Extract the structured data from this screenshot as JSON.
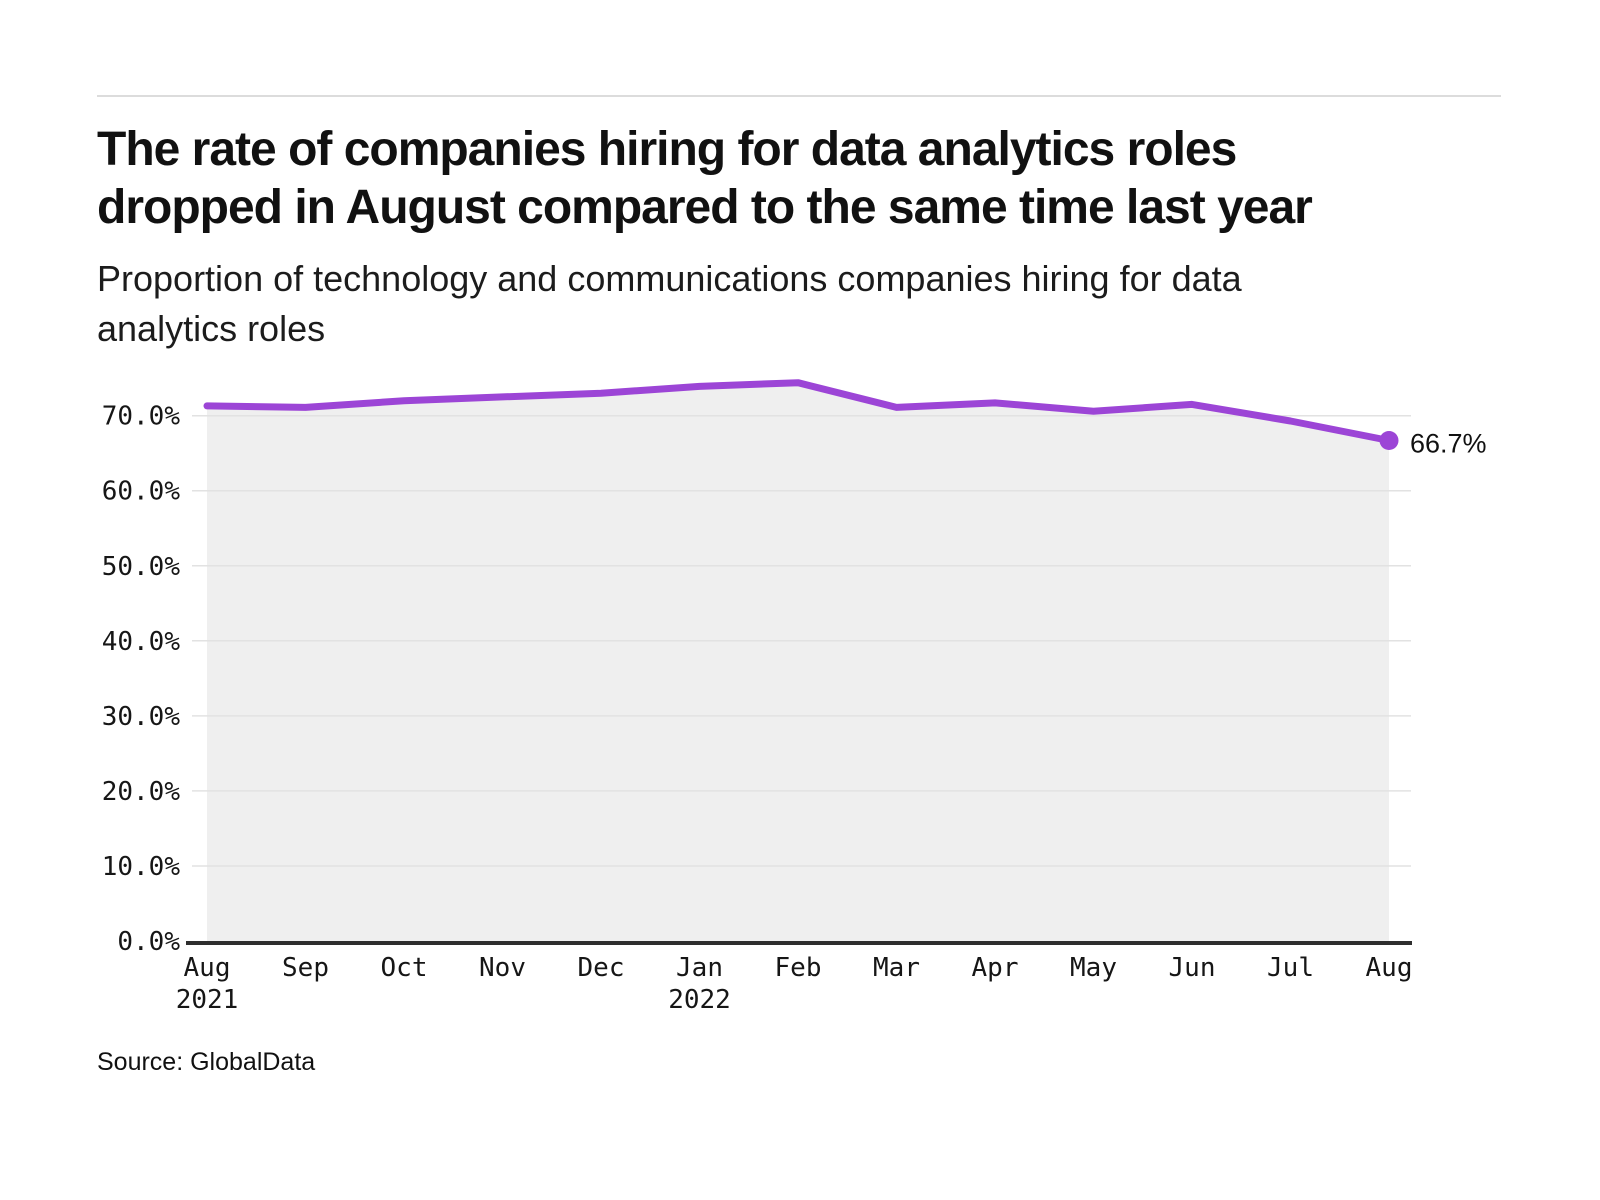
{
  "page": {
    "title_lines": [
      "The rate of companies hiring for data analytics roles",
      "dropped in August compared to the same time last year"
    ],
    "subtitle_lines": [
      "Proportion of technology and communications companies hiring for data",
      "analytics roles"
    ],
    "source": "Source: GlobalData"
  },
  "chart_data": {
    "type": "line",
    "title": "The rate of companies hiring for data analytics roles dropped in August compared to the same time last year",
    "subtitle": "Proportion of technology and communications companies hiring for data analytics roles",
    "categories": [
      "Aug 2021",
      "Sep",
      "Oct",
      "Nov",
      "Dec",
      "Jan 2022",
      "Feb",
      "Mar",
      "Apr",
      "May",
      "Jun",
      "Jul",
      "Aug"
    ],
    "x_tick_labels": [
      {
        "label": "Aug",
        "sub": "2021"
      },
      {
        "label": "Sep"
      },
      {
        "label": "Oct"
      },
      {
        "label": "Nov"
      },
      {
        "label": "Dec"
      },
      {
        "label": "Jan",
        "sub": "2022"
      },
      {
        "label": "Feb"
      },
      {
        "label": "Mar"
      },
      {
        "label": "Apr"
      },
      {
        "label": "May"
      },
      {
        "label": "Jun"
      },
      {
        "label": "Jul"
      },
      {
        "label": "Aug"
      }
    ],
    "values": [
      71.3,
      71.1,
      72.0,
      72.5,
      73.0,
      73.9,
      74.4,
      71.1,
      71.7,
      70.6,
      71.5,
      69.3,
      66.7
    ],
    "unit": "%",
    "xlabel": "",
    "ylabel": "",
    "y_ticks": [
      {
        "value": 0,
        "label": "0.0%"
      },
      {
        "value": 10,
        "label": "10.0%"
      },
      {
        "value": 20,
        "label": "20.0%"
      },
      {
        "value": 30,
        "label": "30.0%"
      },
      {
        "value": 40,
        "label": "40.0%"
      },
      {
        "value": 50,
        "label": "50.0%"
      },
      {
        "value": 60,
        "label": "60.0%"
      },
      {
        "value": 70,
        "label": "70.0%"
      }
    ],
    "ylim": [
      0,
      78
    ],
    "grid": "horizontal",
    "legend": "none",
    "end_point_label": "66.7%",
    "colors": {
      "line": "#9C45D6",
      "area_fill": "#EFEFEF",
      "gridline": "#E2E2E2",
      "axis": "#2E2E2E",
      "text": "#161616"
    }
  }
}
